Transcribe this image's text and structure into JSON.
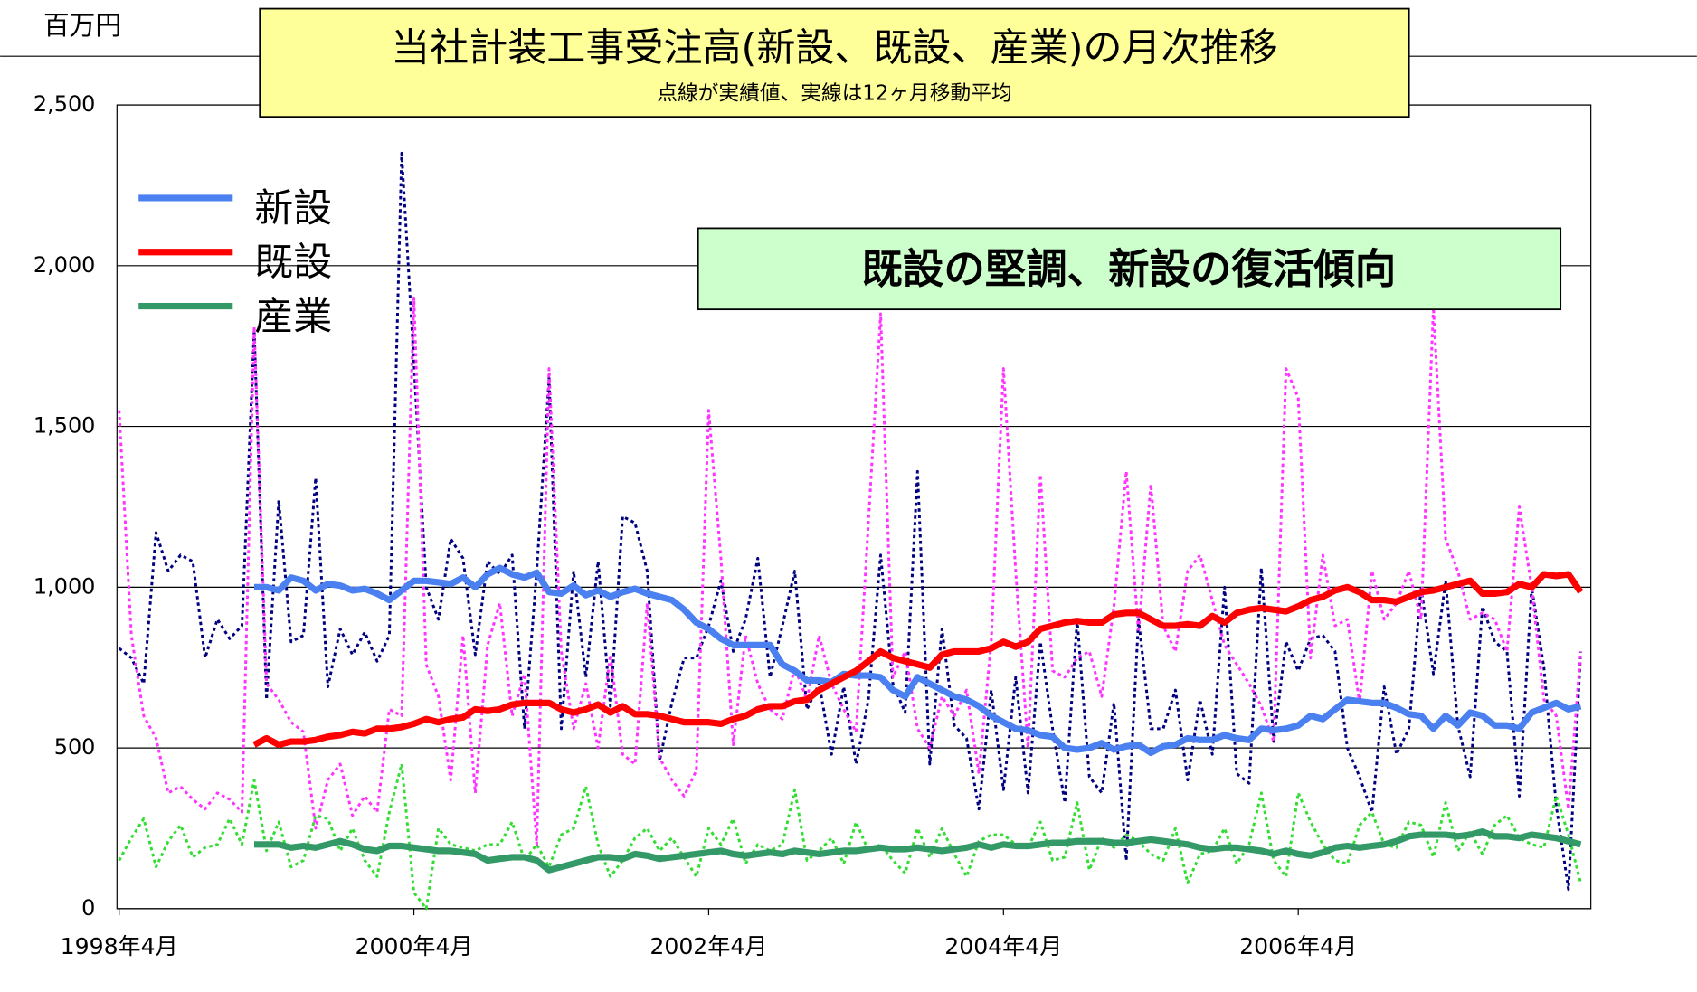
{
  "chart_data": {
    "type": "line",
    "title": "当社計装工事受注高(新設、既設、産業)の月次推移",
    "subtitle": "点線が実績値、実線は12ヶ月移動平均",
    "y_unit": "百万円",
    "annotation": "既設の堅調、新設の復活傾向",
    "categories": [
      "1998年4月",
      null,
      null,
      null,
      null,
      null,
      null,
      null,
      null,
      null,
      null,
      null,
      null,
      null,
      null,
      null,
      null,
      null,
      null,
      null,
      null,
      null,
      null,
      null,
      "2000年4月",
      null,
      null,
      null,
      null,
      null,
      null,
      null,
      null,
      null,
      null,
      null,
      null,
      null,
      null,
      null,
      null,
      null,
      null,
      null,
      null,
      null,
      null,
      null,
      "2002年4月",
      null,
      null,
      null,
      null,
      null,
      null,
      null,
      null,
      null,
      null,
      null,
      null,
      null,
      null,
      null,
      null,
      null,
      null,
      null,
      null,
      null,
      null,
      null,
      "2004年4月",
      null,
      null,
      null,
      null,
      null,
      null,
      null,
      null,
      null,
      null,
      null,
      null,
      null,
      null,
      null,
      null,
      null,
      null,
      null,
      null,
      null,
      null,
      null,
      "2006年4月",
      null,
      null,
      null,
      null,
      null,
      null,
      null,
      null,
      null,
      null,
      null,
      null,
      null,
      null,
      null,
      null,
      null,
      null,
      null,
      null,
      null,
      null,
      null
    ],
    "ylim": [
      0,
      2500
    ],
    "yticks": [
      0,
      500,
      {
        "value": 1000,
        "label": "1,000"
      },
      {
        "value": 1500,
        "label": "1,500"
      },
      {
        "value": 2000,
        "label": "2,000"
      },
      {
        "value": 2500,
        "label": "2,500"
      }
    ],
    "grid": true,
    "legend": "upper left",
    "series": [
      {
        "color": "#000080",
        "line_style": "dotted",
        "values": [
          810,
          780,
          700,
          1170,
          1050,
          1100,
          1080,
          780,
          900,
          840,
          880,
          1800,
          650,
          1270,
          830,
          850,
          1340,
          690,
          870,
          790,
          860,
          770,
          850,
          2350,
          1700,
          1000,
          900,
          1150,
          1090,
          790,
          1080,
          1040,
          1100,
          560,
          1050,
          1650,
          560,
          1050,
          720,
          1080,
          630,
          1220,
          1200,
          1050,
          460,
          640,
          780,
          780,
          880,
          1020,
          800,
          900,
          1090,
          720,
          880,
          1050,
          620,
          700,
          480,
          690,
          450,
          650,
          1100,
          700,
          610,
          1360,
          450,
          870,
          570,
          530,
          310,
          680,
          370,
          720,
          360,
          830,
          560,
          330,
          900,
          410,
          360,
          640,
          150,
          900,
          560,
          560,
          680,
          400,
          650,
          480,
          1000,
          420,
          390,
          1060,
          520,
          830,
          740,
          840,
          850,
          800,
          500,
          410,
          300,
          690,
          480,
          560,
          1000,
          730,
          1020,
          570,
          410,
          940,
          830,
          800,
          350,
          1000,
          750,
          320,
          60,
          800
        ]
      },
      {
        "color": "#ff33ff",
        "line_style": "dotted",
        "values": [
          1550,
          850,
          600,
          530,
          360,
          380,
          340,
          310,
          360,
          340,
          300,
          1810,
          700,
          650,
          580,
          550,
          250,
          400,
          450,
          290,
          350,
          300,
          620,
          600,
          1900,
          760,
          660,
          400,
          850,
          360,
          820,
          950,
          600,
          730,
          200,
          1680,
          800,
          560,
          700,
          500,
          790,
          480,
          450,
          950,
          470,
          400,
          350,
          430,
          1550,
          1090,
          510,
          850,
          700,
          620,
          590,
          750,
          650,
          850,
          700,
          620,
          550,
          1200,
          1850,
          720,
          800,
          560,
          500,
          660,
          600,
          680,
          420,
          830,
          1680,
          1050,
          500,
          1350,
          740,
          720,
          780,
          800,
          660,
          940,
          1360,
          860,
          1320,
          880,
          800,
          1050,
          1100,
          960,
          820,
          760,
          700,
          630,
          520,
          1680,
          1590,
          780,
          1100,
          880,
          900,
          640,
          1050,
          900,
          950,
          1050,
          900,
          1870,
          1150,
          1050,
          900,
          920,
          900,
          800,
          1250,
          1000,
          650,
          600,
          310,
          800
        ]
      },
      {
        "color": "#33dd33",
        "line_style": "dotted",
        "values": [
          150,
          220,
          280,
          130,
          210,
          260,
          160,
          190,
          200,
          280,
          200,
          400,
          180,
          270,
          130,
          150,
          290,
          280,
          180,
          250,
          150,
          100,
          300,
          450,
          50,
          0,
          250,
          200,
          190,
          180,
          200,
          200,
          270,
          150,
          200,
          130,
          230,
          250,
          380,
          200,
          100,
          150,
          220,
          250,
          180,
          220,
          160,
          100,
          250,
          200,
          280,
          140,
          200,
          180,
          200,
          370,
          150,
          180,
          220,
          140,
          270,
          180,
          200,
          150,
          110,
          250,
          160,
          250,
          170,
          100,
          210,
          230,
          230,
          200,
          190,
          270,
          150,
          160,
          330,
          120,
          220,
          190,
          230,
          210,
          170,
          150,
          250,
          80,
          170,
          180,
          250,
          140,
          200,
          360,
          150,
          100,
          360,
          270,
          200,
          150,
          140,
          260,
          300,
          200,
          190,
          270,
          260,
          160,
          330,
          180,
          240,
          170,
          260,
          290,
          220,
          200,
          190,
          350,
          230,
          80
        ]
      },
      {
        "name": "新設",
        "color": "#4a80f0",
        "line_style": "solid",
        "values": [
          null,
          null,
          null,
          null,
          null,
          null,
          null,
          null,
          null,
          null,
          null,
          1000,
          1000,
          990,
          1030,
          1020,
          990,
          1010,
          1005,
          990,
          995,
          980,
          960,
          990,
          1020,
          1020,
          1015,
          1010,
          1030,
          1000,
          1040,
          1060,
          1040,
          1030,
          1045,
          985,
          980,
          1005,
          975,
          990,
          970,
          985,
          995,
          980,
          970,
          960,
          930,
          890,
          870,
          840,
          820,
          820,
          820,
          820,
          760,
          740,
          710,
          710,
          705,
          730,
          725,
          725,
          720,
          680,
          660,
          720,
          700,
          680,
          660,
          650,
          630,
          600,
          580,
          560,
          555,
          540,
          535,
          500,
          495,
          500,
          515,
          495,
          505,
          510,
          485,
          505,
          510,
          530,
          525,
          525,
          540,
          530,
          525,
          560,
          555,
          560,
          570,
          600,
          590,
          620,
          650,
          645,
          640,
          640,
          625,
          605,
          600,
          560,
          600,
          570,
          610,
          600,
          570,
          570,
          560,
          610,
          625,
          640,
          620,
          630
        ]
      },
      {
        "name": "既設",
        "color": "#ff0000",
        "line_style": "solid",
        "values": [
          null,
          null,
          null,
          null,
          null,
          null,
          null,
          null,
          null,
          null,
          null,
          510,
          530,
          510,
          520,
          520,
          525,
          535,
          540,
          550,
          545,
          560,
          560,
          565,
          575,
          590,
          580,
          590,
          595,
          620,
          615,
          620,
          635,
          640,
          640,
          640,
          620,
          610,
          620,
          635,
          610,
          630,
          605,
          605,
          600,
          590,
          580,
          580,
          580,
          575,
          590,
          600,
          620,
          630,
          630,
          645,
          650,
          680,
          700,
          720,
          740,
          770,
          800,
          780,
          770,
          760,
          750,
          790,
          800,
          800,
          800,
          810,
          830,
          815,
          830,
          870,
          880,
          890,
          895,
          890,
          890,
          915,
          920,
          920,
          900,
          880,
          880,
          885,
          880,
          910,
          890,
          920,
          930,
          935,
          930,
          925,
          940,
          960,
          970,
          990,
          1000,
          985,
          960,
          960,
          955,
          970,
          985,
          990,
          1000,
          1010,
          1020,
          980,
          980,
          985,
          1010,
          1000,
          1040,
          1035,
          1040,
          985
        ]
      },
      {
        "name": "産業",
        "color": "#339966",
        "line_style": "solid",
        "values": [
          null,
          null,
          null,
          null,
          null,
          null,
          null,
          null,
          null,
          null,
          null,
          200,
          200,
          200,
          190,
          195,
          190,
          200,
          210,
          200,
          185,
          180,
          195,
          195,
          190,
          185,
          180,
          180,
          175,
          170,
          150,
          155,
          160,
          160,
          150,
          120,
          130,
          140,
          150,
          160,
          160,
          155,
          170,
          165,
          155,
          160,
          165,
          170,
          175,
          180,
          170,
          165,
          170,
          175,
          170,
          180,
          175,
          170,
          175,
          180,
          180,
          185,
          190,
          185,
          185,
          190,
          185,
          180,
          185,
          190,
          200,
          190,
          200,
          195,
          195,
          200,
          205,
          205,
          210,
          210,
          210,
          205,
          205,
          210,
          215,
          210,
          205,
          200,
          190,
          185,
          190,
          190,
          185,
          180,
          170,
          180,
          170,
          165,
          175,
          190,
          195,
          190,
          195,
          200,
          210,
          225,
          230,
          230,
          230,
          225,
          230,
          240,
          225,
          225,
          220,
          230,
          225,
          220,
          210,
          200
        ]
      }
    ]
  }
}
